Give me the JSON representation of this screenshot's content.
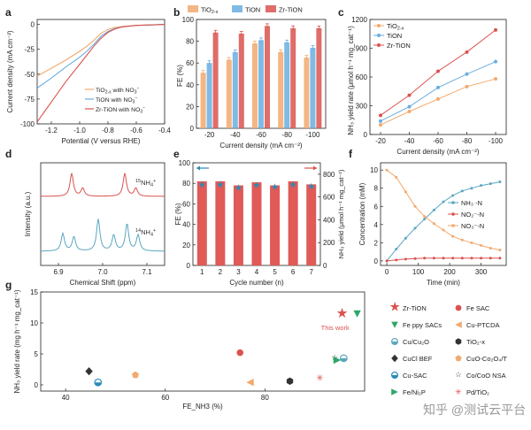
{
  "figure": {
    "watermark": "知乎 @测试云平台",
    "colors": {
      "tio2": "#f2a96e",
      "tion": "#6aaee0",
      "zrtion": "#d9534f",
      "teal": "#5aa6bf",
      "star": "#2a8ab7",
      "green": "#2fa66b",
      "dark": "#333333"
    }
  },
  "chart_data": [
    {
      "panel": "a",
      "type": "line",
      "title": "",
      "xlabel": "Potential (V versus RHE)",
      "ylabel": "Current density (mA cm⁻²)",
      "xlim": [
        -1.3,
        -0.4
      ],
      "ylim": [
        -100,
        5
      ],
      "xticks": [
        "-1.2",
        "-1.0",
        "-0.8",
        "-0.6",
        "-0.4"
      ],
      "yticks": [
        "0",
        "-25",
        "-50",
        "-75",
        "-100"
      ],
      "series": [
        {
          "name": "TiO2-x with NO3⁻",
          "label_main": "TiO",
          "label_sub": "2-x",
          "label_rest": " with NO",
          "label_sub2": "3",
          "label_sup": "−",
          "color_key": "tio2",
          "x": [
            -1.3,
            -1.2,
            -1.1,
            -1.0,
            -0.95,
            -0.9,
            -0.85,
            -0.8,
            -0.75,
            -0.7,
            -0.6,
            -0.5,
            -0.4
          ],
          "y": [
            -52,
            -44,
            -36,
            -27,
            -22,
            -16,
            -9,
            -5,
            -3,
            -2,
            -1,
            -0.5,
            0
          ]
        },
        {
          "name": "TiON with NO3⁻",
          "label_main": "TiON",
          "label_sub": "",
          "label_rest": " with NO",
          "label_sub2": "3",
          "label_sup": "−",
          "color_key": "tion",
          "x": [
            -1.3,
            -1.2,
            -1.1,
            -1.0,
            -0.95,
            -0.9,
            -0.85,
            -0.8,
            -0.75,
            -0.7,
            -0.6,
            -0.5,
            -0.4
          ],
          "y": [
            -64,
            -54,
            -43,
            -33,
            -27,
            -20,
            -12,
            -7,
            -4,
            -2.5,
            -1,
            -0.5,
            0
          ]
        },
        {
          "name": "Zr-TiON with NO3⁻",
          "label_main": "Zr-TiON",
          "label_sub": "",
          "label_rest": " with NO",
          "label_sub2": "3",
          "label_sup": "−",
          "color_key": "zrtion",
          "x": [
            -1.3,
            -1.25,
            -1.2,
            -1.1,
            -1.0,
            -0.95,
            -0.9,
            -0.85,
            -0.8,
            -0.75,
            -0.7,
            -0.6,
            -0.5,
            -0.4
          ],
          "y": [
            -98,
            -88,
            -78,
            -58,
            -40,
            -31,
            -22,
            -14,
            -8,
            -4.5,
            -2.5,
            -1,
            -0.5,
            0
          ]
        }
      ]
    },
    {
      "panel": "b",
      "type": "bar",
      "xlabel": "Current density (mA cm⁻²)",
      "ylabel": "FE (%)",
      "ylim": [
        0,
        100
      ],
      "yticks": [
        "0",
        "20",
        "40",
        "60",
        "80",
        "100"
      ],
      "categories": [
        "-20",
        "-40",
        "-60",
        "-80",
        "-100"
      ],
      "series": [
        {
          "name": "TiO2-x",
          "label_main": "TiO",
          "label_sub": "2-x",
          "color_key": "tio2",
          "values": [
            51,
            63,
            78,
            70,
            65
          ]
        },
        {
          "name": "TiON",
          "label_main": "TiON",
          "label_sub": "",
          "color_key": "tion",
          "values": [
            60,
            70,
            81,
            79,
            74
          ]
        },
        {
          "name": "Zr-TiON",
          "label_main": "Zr-TiON",
          "label_sub": "",
          "color_key": "zrtion",
          "values": [
            88,
            87,
            94,
            92,
            92
          ]
        }
      ]
    },
    {
      "panel": "c",
      "type": "line",
      "xlabel": "Current density (mA cm⁻²)",
      "ylabel": "NH₃ yield rate (μmol h⁻¹ mg_cat⁻¹)",
      "ylim": [
        0,
        1200
      ],
      "yticks": [
        "0",
        "300",
        "600",
        "900",
        "1200"
      ],
      "categories": [
        "-20",
        "-40",
        "-60",
        "-80",
        "-100"
      ],
      "series": [
        {
          "name": "TiO2-x",
          "label_main": "TiO",
          "label_sub": "2-x",
          "color_key": "tio2",
          "values": [
            100,
            240,
            370,
            500,
            580
          ]
        },
        {
          "name": "TiON",
          "label_main": "TiON",
          "label_sub": "",
          "color_key": "tion",
          "values": [
            140,
            290,
            490,
            630,
            760
          ]
        },
        {
          "name": "Zr-TiON",
          "label_main": "Zr-TiON",
          "label_sub": "",
          "color_key": "zrtion",
          "values": [
            200,
            410,
            660,
            860,
            1090
          ]
        }
      ]
    },
    {
      "panel": "d",
      "type": "line",
      "xlabel": "Chemical Shift (ppm)",
      "ylabel": "Intensity (a.u.)",
      "xlim": [
        6.86,
        7.14
      ],
      "xticks": [
        "6.9",
        "7.0",
        "7.1"
      ],
      "series": [
        {
          "name": "15NH4+",
          "label_pre": "15",
          "label_main": "NH",
          "label_sub": "4",
          "label_sup": "+",
          "color_key": "zrtion",
          "peaks_ppm": [
            6.93,
            6.955,
            7.05,
            7.075
          ],
          "peak_heights": [
            1.0,
            0.35,
            1.0,
            0.35
          ]
        },
        {
          "name": "14NH4+",
          "label_pre": "14",
          "label_main": "NH",
          "label_sub": "4",
          "label_sup": "+",
          "color_key": "teal",
          "peaks_ppm": [
            6.91,
            6.935,
            6.99,
            7.025,
            7.055,
            7.08
          ],
          "peak_heights": [
            0.55,
            0.45,
            1.0,
            0.5,
            0.85,
            0.5
          ]
        }
      ]
    },
    {
      "panel": "e",
      "type": "bar",
      "xlabel": "Cycle number (n)",
      "ylabel": "FE (%)",
      "ylabel_right": "NH₃ yield (μmol h⁻¹ mg_cat⁻¹)",
      "ylim": [
        0,
        100
      ],
      "yticks": [
        "0",
        "20",
        "40",
        "60",
        "80",
        "100"
      ],
      "ylim_right": [
        0,
        900
      ],
      "yticks_right": [
        "0",
        "200",
        "400",
        "600",
        "800"
      ],
      "categories": [
        "1",
        "2",
        "3",
        "4",
        "5",
        "6",
        "7"
      ],
      "fe_values": [
        82,
        82,
        78,
        81,
        78,
        82,
        79
      ],
      "yield_values": [
        715,
        715,
        685,
        710,
        695,
        715,
        700
      ]
    },
    {
      "panel": "f",
      "type": "line",
      "xlabel": "Time (min)",
      "ylabel": "Concentration (mM)",
      "xlim": [
        -20,
        380
      ],
      "ylim": [
        -0.5,
        10.8
      ],
      "xticks": [
        "0",
        "100",
        "200",
        "300"
      ],
      "yticks": [
        "0",
        "2",
        "4",
        "6",
        "8",
        "10"
      ],
      "series": [
        {
          "name": "NH3-N",
          "text": "NH₃ -N",
          "color_key": "teal",
          "x": [
            0,
            30,
            60,
            90,
            120,
            150,
            180,
            210,
            240,
            270,
            300,
            330,
            360
          ],
          "y": [
            0,
            1.3,
            2.5,
            3.6,
            4.6,
            5.6,
            6.5,
            7.2,
            7.7,
            8.0,
            8.3,
            8.5,
            8.7
          ]
        },
        {
          "name": "NO2-N",
          "text": "NO₂⁻-N",
          "color_key": "zrtion",
          "x": [
            0,
            30,
            60,
            90,
            120,
            150,
            180,
            210,
            240,
            270,
            300,
            330,
            360
          ],
          "y": [
            0,
            0.1,
            0.2,
            0.25,
            0.3,
            0.3,
            0.3,
            0.3,
            0.3,
            0.3,
            0.3,
            0.3,
            0.3
          ]
        },
        {
          "name": "NO3-N",
          "text": "NO₃⁻-N",
          "color_key": "tio2",
          "x": [
            0,
            30,
            60,
            90,
            120,
            150,
            180,
            210,
            240,
            270,
            300,
            330,
            360
          ],
          "y": [
            10.0,
            9.2,
            7.6,
            6.0,
            4.9,
            4.1,
            3.4,
            2.7,
            2.3,
            2.0,
            1.7,
            1.4,
            1.2
          ]
        }
      ]
    },
    {
      "panel": "g",
      "type": "scatter",
      "xlabel": "FE_NH3 (%)",
      "ylabel": "NH₃ yield rate (mg h⁻¹ mg_cat⁻¹)",
      "xlim": [
        35,
        100
      ],
      "ylim": [
        -1,
        15
      ],
      "xticks": [
        "40",
        "60",
        "80"
      ],
      "yticks": [
        "0",
        "5",
        "10",
        "15"
      ],
      "annotation": "This work",
      "points": [
        {
          "name": "Zr-TiON",
          "x": 95.5,
          "y": 11.4,
          "marker": "star",
          "color_key": "zrtion"
        },
        {
          "name": "Fe SAC",
          "x": 75.0,
          "y": 5.2,
          "marker": "circle",
          "color_key": "zrtion"
        },
        {
          "name": "Fe ppy SACs",
          "x": 98.5,
          "y": 11.5,
          "marker": "triangle-down",
          "color_key": "green"
        },
        {
          "name": "Cu-PTCDA",
          "x": 77.0,
          "y": 0.4,
          "marker": "triangle-left",
          "color_key": "tio2"
        },
        {
          "name": "Cu/Cu2O",
          "x": 95.8,
          "y": 4.3,
          "marker": "half-circle",
          "color_key": "teal"
        },
        {
          "name": "TiO2-x",
          "x": 85.0,
          "y": 0.6,
          "marker": "hexagon",
          "color_key": "dark"
        },
        {
          "name": "CuCl BEF",
          "x": 44.7,
          "y": 2.2,
          "marker": "diamond",
          "color_key": "dark"
        },
        {
          "name": "CuO-Co2O4/T",
          "x": 54.0,
          "y": 1.6,
          "marker": "pentagon",
          "color_key": "tio2"
        },
        {
          "name": "Cu-SAC",
          "x": 46.5,
          "y": 0.4,
          "marker": "half-circle",
          "color_key": "star"
        },
        {
          "name": "Co/CoO NSA",
          "x": 94.0,
          "y": 4.3,
          "marker": "star-outline",
          "color_key": "dark"
        },
        {
          "name": "Fe/Ni2P",
          "x": 94.5,
          "y": 4.0,
          "marker": "triangle-right",
          "color_key": "green"
        },
        {
          "name": "Pd/TiO2",
          "x": 91.0,
          "y": 1.1,
          "marker": "asterisk",
          "color_key": "zrtion"
        }
      ],
      "legend": [
        [
          "Zr-TiON",
          "Fe SAC"
        ],
        [
          "Fe ppy SACs",
          "Cu-PTCDA"
        ],
        [
          "Cu/Cu₂O",
          "TiO₂-x"
        ],
        [
          "CuCl BEF",
          "CuO-Co₂O₄/T"
        ],
        [
          "Cu-SAC",
          "Co/CoO NSA"
        ],
        [
          "Fe/Ni₂P",
          "Pd/TiO₂"
        ]
      ]
    }
  ]
}
